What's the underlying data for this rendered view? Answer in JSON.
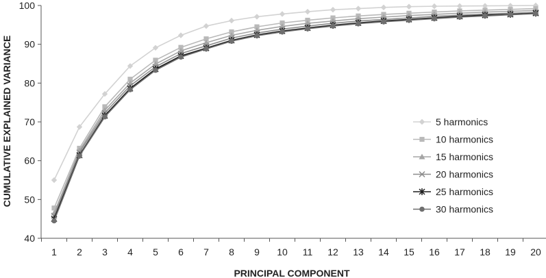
{
  "chart_data": {
    "type": "line",
    "title": "",
    "xlabel": "PRINCIPAL COMPONENT",
    "ylabel": "CUMULATIVE EXPLAINED VARIANCE",
    "x": [
      1,
      2,
      3,
      4,
      5,
      6,
      7,
      8,
      9,
      10,
      11,
      12,
      13,
      14,
      15,
      16,
      17,
      18,
      19,
      20
    ],
    "ylim": [
      40,
      100
    ],
    "yticks": [
      40,
      50,
      60,
      70,
      80,
      90,
      100
    ],
    "grid": false,
    "legend_position": "right",
    "series": [
      {
        "name": "5 harmonics",
        "color": "#d2d2d2",
        "marker": "diamond",
        "values": [
          55.0,
          68.7,
          77.2,
          84.4,
          89.1,
          92.3,
          94.7,
          96.1,
          97.1,
          97.8,
          98.4,
          98.9,
          99.2,
          99.5,
          99.7,
          99.8,
          99.85,
          99.9,
          99.95,
          100.0
        ]
      },
      {
        "name": "10 harmonics",
        "color": "#b9b9b9",
        "marker": "square",
        "values": [
          47.8,
          63.2,
          73.9,
          81.0,
          85.9,
          89.2,
          91.4,
          93.2,
          94.5,
          95.5,
          96.2,
          96.8,
          97.3,
          97.7,
          98.0,
          98.3,
          98.6,
          98.8,
          99.0,
          99.2
        ]
      },
      {
        "name": "15 harmonics",
        "color": "#a5a5a5",
        "marker": "triangle",
        "values": [
          46.5,
          62.6,
          73.0,
          80.0,
          84.9,
          88.3,
          90.4,
          92.3,
          93.6,
          94.6,
          95.4,
          96.0,
          96.6,
          97.0,
          97.4,
          97.7,
          98.0,
          98.3,
          98.5,
          98.7
        ]
      },
      {
        "name": "20 harmonics",
        "color": "#8c8c8c",
        "marker": "x",
        "values": [
          45.8,
          62.1,
          72.3,
          79.3,
          84.2,
          87.6,
          89.6,
          91.6,
          92.9,
          93.9,
          94.7,
          95.4,
          96.0,
          96.4,
          96.8,
          97.2,
          97.5,
          97.8,
          98.0,
          98.2
        ]
      },
      {
        "name": "25 harmonics",
        "color": "#1e1e1e",
        "marker": "star",
        "values": [
          45.0,
          61.4,
          71.6,
          78.6,
          83.6,
          87.0,
          89.0,
          91.0,
          92.4,
          93.4,
          94.2,
          94.9,
          95.5,
          96.0,
          96.4,
          96.8,
          97.2,
          97.5,
          97.7,
          98.0
        ]
      },
      {
        "name": "30 harmonics",
        "color": "#6f6f6f",
        "marker": "circle",
        "values": [
          44.5,
          61.2,
          71.3,
          78.3,
          83.3,
          86.7,
          88.8,
          90.8,
          92.2,
          93.2,
          94.0,
          94.7,
          95.3,
          95.8,
          96.2,
          96.6,
          97.0,
          97.3,
          97.6,
          97.9
        ]
      }
    ]
  }
}
